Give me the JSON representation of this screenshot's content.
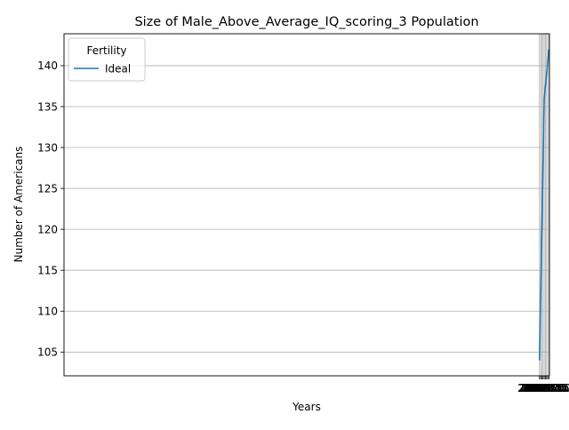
{
  "chart_data": {
    "type": "line",
    "title": "Size of Male_Above_Average_IQ_scoring_3 Population",
    "xlabel": "Years",
    "ylabel": "Number of Americans",
    "xlim": [
      1967.9,
      2070.1
    ],
    "ylim": [
      102.1,
      143.9
    ],
    "xticks": [
      2068.0,
      2068.25,
      2068.5,
      2068.75,
      2069.0,
      2069.25,
      2069.5,
      2069.75,
      2070.0
    ],
    "xtick_labels": [
      "2068.00",
      "2068.25",
      "2068.50",
      "2068.75",
      "2069.00",
      "2069.25",
      "2069.50",
      "2069.75",
      "2070.00"
    ],
    "yticks": [
      105,
      110,
      115,
      120,
      125,
      130,
      135,
      140
    ],
    "ytick_labels": [
      "105",
      "110",
      "115",
      "120",
      "125",
      "130",
      "135",
      "140"
    ],
    "grid": true,
    "legend": {
      "title": "Fertility",
      "placement": "top-left"
    },
    "series": [
      {
        "name": "Ideal",
        "color": "#1f77b4",
        "x": [
          2068,
          2069,
          2070
        ],
        "y": [
          104,
          136,
          142
        ]
      }
    ]
  }
}
